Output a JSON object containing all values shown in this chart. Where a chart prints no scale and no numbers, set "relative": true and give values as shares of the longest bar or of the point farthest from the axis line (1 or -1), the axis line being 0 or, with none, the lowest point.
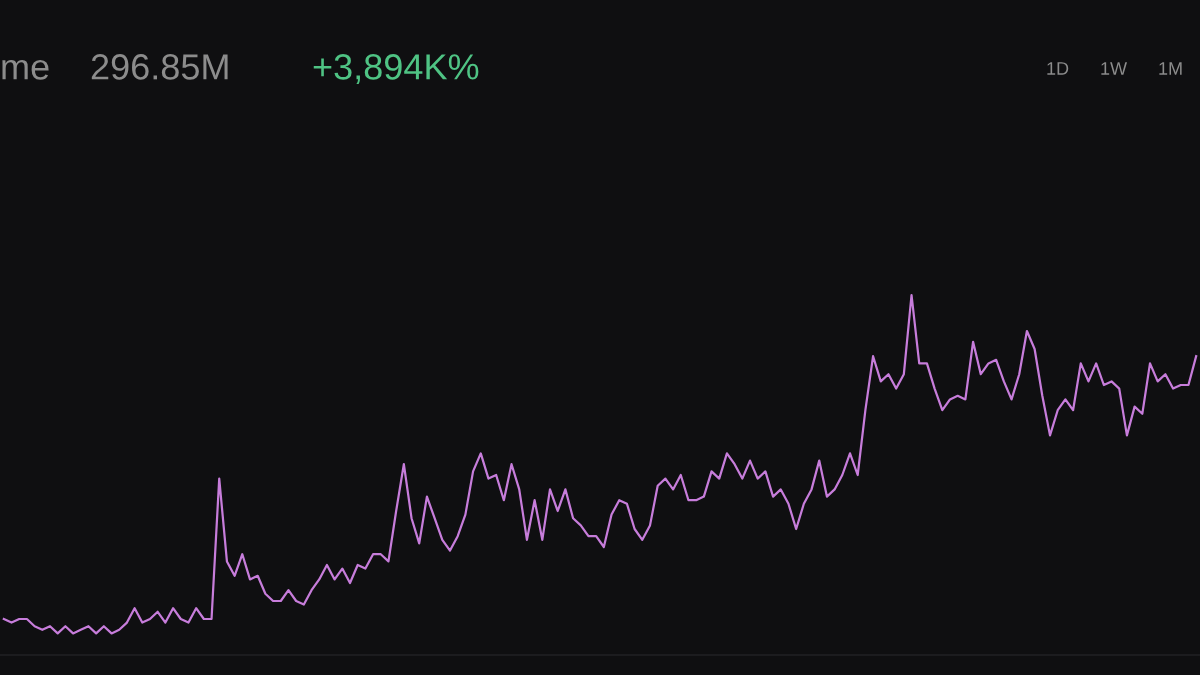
{
  "chart_data": {
    "type": "line",
    "relative": true,
    "color": "#c77ddb",
    "marker": "none",
    "line_style": "solid",
    "legend": false,
    "annotations": [
      "me",
      "296.85M",
      "+3,894K%",
      "1D",
      "1W",
      "1M"
    ],
    "categories": [
      null,
      null,
      null,
      null,
      null,
      null,
      null,
      null,
      null,
      null,
      null,
      null,
      null,
      null,
      null,
      null,
      null,
      null,
      null,
      null,
      null,
      null,
      null,
      null,
      null,
      null,
      null,
      null,
      null,
      null,
      null,
      null,
      null,
      null,
      null,
      null,
      null,
      null,
      null,
      null,
      null,
      null,
      null,
      null,
      null,
      null,
      null,
      null,
      null,
      null,
      null,
      null,
      null,
      null,
      null,
      null,
      null,
      null,
      null,
      null,
      null,
      null,
      null,
      null,
      null,
      null,
      null,
      null,
      null,
      null,
      null,
      null,
      null,
      null,
      null,
      null,
      null,
      null,
      null,
      null,
      null,
      null,
      null,
      null,
      null,
      null,
      null,
      null,
      null,
      null,
      null,
      null,
      null,
      null,
      null,
      null,
      null,
      null,
      null,
      null,
      null,
      null,
      null,
      null,
      null,
      null,
      null,
      null,
      null,
      null,
      null,
      null,
      null,
      null,
      null,
      null,
      null,
      null,
      null,
      null,
      null,
      null,
      null,
      null,
      null,
      null,
      null,
      null,
      null,
      null,
      null,
      null,
      null,
      null,
      null,
      null,
      null,
      null,
      null,
      null,
      null,
      null,
      null,
      null,
      null,
      null,
      null,
      null,
      null,
      null,
      null,
      null,
      null,
      null,
      null,
      null
    ],
    "values": [
      0.1,
      0.09,
      0.1,
      0.1,
      0.08,
      0.07,
      0.08,
      0.06,
      0.08,
      0.06,
      0.07,
      0.08,
      0.06,
      0.08,
      0.06,
      0.07,
      0.09,
      0.13,
      0.09,
      0.1,
      0.12,
      0.09,
      0.13,
      0.1,
      0.09,
      0.13,
      0.1,
      0.1,
      0.49,
      0.26,
      0.22,
      0.28,
      0.21,
      0.22,
      0.17,
      0.15,
      0.15,
      0.18,
      0.15,
      0.14,
      0.18,
      0.21,
      0.25,
      0.21,
      0.24,
      0.2,
      0.25,
      0.24,
      0.28,
      0.28,
      0.26,
      0.4,
      0.53,
      0.38,
      0.31,
      0.44,
      0.38,
      0.32,
      0.29,
      0.33,
      0.39,
      0.51,
      0.56,
      0.49,
      0.5,
      0.43,
      0.53,
      0.46,
      0.32,
      0.43,
      0.32,
      0.46,
      0.4,
      0.46,
      0.38,
      0.36,
      0.33,
      0.33,
      0.3,
      0.39,
      0.43,
      0.42,
      0.35,
      0.32,
      0.36,
      0.47,
      0.49,
      0.46,
      0.5,
      0.43,
      0.43,
      0.44,
      0.51,
      0.49,
      0.56,
      0.53,
      0.49,
      0.54,
      0.49,
      0.51,
      0.44,
      0.46,
      0.42,
      0.35,
      0.42,
      0.46,
      0.54,
      0.44,
      0.46,
      0.5,
      0.56,
      0.5,
      0.68,
      0.83,
      0.76,
      0.78,
      0.74,
      0.78,
      1,
      0.81,
      0.81,
      0.74,
      0.68,
      0.71,
      0.72,
      0.71,
      0.87,
      0.78,
      0.81,
      0.82,
      0.76,
      0.71,
      0.78,
      0.9,
      0.85,
      0.72,
      0.61,
      0.68,
      0.71,
      0.68,
      0.81,
      0.76,
      0.81,
      0.75,
      0.76,
      0.74,
      0.61,
      0.69,
      0.67,
      0.81,
      0.76,
      0.78,
      0.74,
      0.75,
      0.75,
      0.83
    ]
  }
}
